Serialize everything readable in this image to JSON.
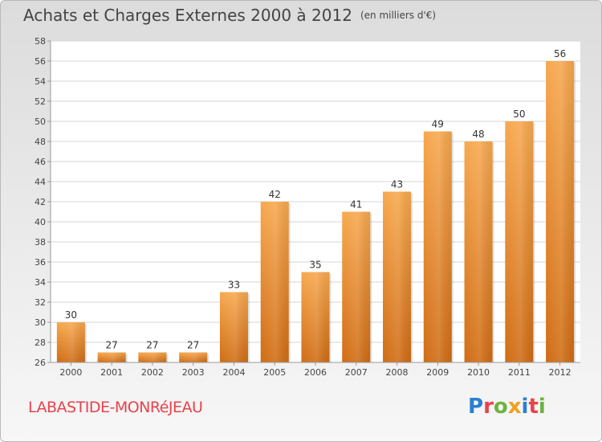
{
  "header": {
    "title": "Achats et Charges Externes 2000 à 2012",
    "unit": "(en milliers d'€)"
  },
  "footer": {
    "city": "LABASTIDE-MONRéJEAU",
    "logo": "Proxiti",
    "logo_colors": [
      "#2a7fd4",
      "#e8434b",
      "#6ab43c",
      "#f0a020",
      "#2a7fd4",
      "#e8434b",
      "#6ab43c"
    ]
  },
  "colors": {
    "bar_top": "#f7a84e",
    "bar_bottom": "#d06c14",
    "label": "#333333"
  },
  "chart_data": {
    "type": "bar",
    "categories": [
      "2000",
      "2001",
      "2002",
      "2003",
      "2004",
      "2005",
      "2006",
      "2007",
      "2008",
      "2009",
      "2010",
      "2011",
      "2012"
    ],
    "values": [
      30,
      27,
      27,
      27,
      33,
      42,
      35,
      41,
      43,
      49,
      48,
      50,
      56
    ],
    "ylim": [
      26,
      58
    ],
    "yticks": [
      26,
      28,
      30,
      32,
      34,
      36,
      38,
      40,
      42,
      44,
      46,
      48,
      50,
      52,
      54,
      56,
      58
    ],
    "grid": "horizontal",
    "data_labels": true
  }
}
